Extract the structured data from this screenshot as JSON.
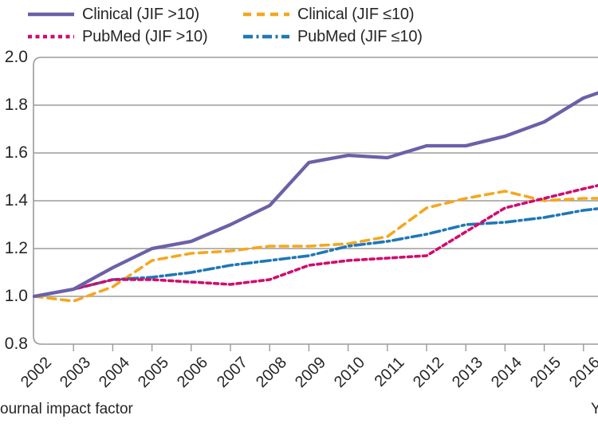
{
  "figure": {
    "note": "figure is cropped: left part of the y-axis title, the x-axis title and everything right of ~year 2016.4 are cut off"
  },
  "colors": {
    "clinical_gt10": "#6C60A8",
    "clinical_le10": "#F5A71F",
    "pubmed_gt10": "#CF0D6E",
    "pubmed_le10": "#1F78B6",
    "gridline": "#9B9B9B",
    "text": "#262626",
    "background": "#FFFFFF"
  },
  "chart_data": {
    "type": "line",
    "title": "",
    "xlabel": "Y",
    "ylabel": "ournal impact factor",
    "x": [
      2002,
      2003,
      2004,
      2005,
      2006,
      2007,
      2008,
      2009,
      2010,
      2011,
      2012,
      2013,
      2014,
      2015,
      2016
    ],
    "ylim": [
      0.8,
      2.0
    ],
    "yticks": [
      0.8,
      1.0,
      1.2,
      1.4,
      1.6,
      1.8,
      2.0
    ],
    "grid": "horizontal-only",
    "legend_position": "top-left, two columns",
    "crop_note": "all four lines visibly continue past 2016 to the cropped right edge; value_at_crop_edge gives the value where each line exits the frame",
    "series": [
      {
        "id": "clinical-jif-gt10",
        "name": "Clinical (JIF >10)",
        "line_style": "solid",
        "color": "#6C60A8",
        "values": [
          1.0,
          1.03,
          1.12,
          1.2,
          1.23,
          1.3,
          1.38,
          1.56,
          1.59,
          1.58,
          1.63,
          1.63,
          1.67,
          1.73,
          1.83
        ],
        "value_at_crop_edge": 1.86
      },
      {
        "id": "clinical-jif-le10",
        "name": "Clinical (JIF ≤10)",
        "line_style": "dash",
        "color": "#F5A71F",
        "values": [
          1.0,
          0.98,
          1.04,
          1.15,
          1.18,
          1.19,
          1.21,
          1.21,
          1.22,
          1.25,
          1.37,
          1.41,
          1.44,
          1.4,
          1.41
        ],
        "value_at_crop_edge": 1.41
      },
      {
        "id": "pubmed-jif-gt10",
        "name": "PubMed (JIF >10)",
        "line_style": "short-dash",
        "color": "#CF0D6E",
        "values": [
          1.0,
          1.03,
          1.07,
          1.07,
          1.06,
          1.05,
          1.07,
          1.13,
          1.15,
          1.16,
          1.17,
          1.27,
          1.37,
          1.41,
          1.45
        ],
        "value_at_crop_edge": 1.47
      },
      {
        "id": "pubmed-jif-le10",
        "name": "PubMed (JIF ≤10)",
        "line_style": "dash-dot",
        "color": "#1F78B6",
        "values": [
          1.0,
          1.03,
          1.07,
          1.08,
          1.1,
          1.13,
          1.15,
          1.17,
          1.21,
          1.23,
          1.26,
          1.3,
          1.31,
          1.33,
          1.36
        ],
        "value_at_crop_edge": 1.37
      }
    ]
  }
}
